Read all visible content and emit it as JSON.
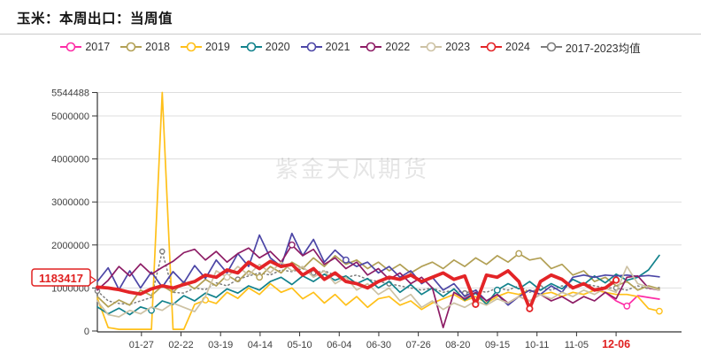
{
  "title": "玉米：本周出口：当周值",
  "watermark": "紫金天风期货",
  "annotation": {
    "label": "1183417",
    "value": 1183417,
    "series": "2024",
    "color": "#e02020",
    "current_x_label": "12-06"
  },
  "chart_data": {
    "type": "line",
    "title": "玉米：本周出口：当周值",
    "xlabel": "",
    "ylabel": "",
    "x_tick_labels": [
      "01-27",
      "02-22",
      "03-19",
      "04-14",
      "05-10",
      "06-04",
      "06-30",
      "07-26",
      "08-20",
      "09-15",
      "10-11",
      "11-05",
      "12-06"
    ],
    "highlighted_x_tick": "12-06",
    "y_ticks": [
      0,
      1000000,
      2000000,
      3000000,
      4000000,
      5000000,
      5544488
    ],
    "ylim": [
      0,
      5544488
    ],
    "grid": "horizontal",
    "legend_position": "top-center",
    "x_unit": "weekly points, early January to late December",
    "series": [
      {
        "name": "2017",
        "color": "#fd2ca6",
        "marker_weeks": [
          49
        ],
        "values": [
          null,
          null,
          null,
          null,
          null,
          null,
          null,
          null,
          null,
          null,
          null,
          null,
          null,
          null,
          null,
          null,
          null,
          null,
          null,
          null,
          null,
          null,
          null,
          null,
          null,
          null,
          null,
          null,
          null,
          null,
          null,
          null,
          null,
          null,
          null,
          null,
          null,
          null,
          null,
          null,
          null,
          null,
          null,
          null,
          null,
          null,
          980000,
          900000,
          700000,
          580000,
          820000,
          780000,
          740000
        ]
      },
      {
        "name": "2018",
        "color": "#b2a055",
        "marker_weeks": [
          15,
          39
        ],
        "values": [
          800000,
          560000,
          720000,
          600000,
          950000,
          820000,
          1050000,
          900000,
          1150000,
          980000,
          1200000,
          1050000,
          1300000,
          1150000,
          1400000,
          1250000,
          1500000,
          1350000,
          1600000,
          1450000,
          1700000,
          1500000,
          1750000,
          1550000,
          1650000,
          1450000,
          1600000,
          1400000,
          1550000,
          1350000,
          1500000,
          1600000,
          1450000,
          1650000,
          1500000,
          1700000,
          1550000,
          1750000,
          1600000,
          1800000,
          1650000,
          1700000,
          1450000,
          1550000,
          1300000,
          1400000,
          1150000,
          1250000,
          1050000,
          1150000,
          950000,
          1050000,
          980000
        ]
      },
      {
        "name": "2019",
        "color": "#ffc019",
        "marker_weeks": [
          10,
          52
        ],
        "values": [
          760000,
          80000,
          40000,
          40000,
          40000,
          40000,
          5544488,
          40000,
          40000,
          620000,
          720000,
          640000,
          900000,
          760000,
          1000000,
          850000,
          1100000,
          900000,
          1000000,
          750000,
          900000,
          650000,
          850000,
          600000,
          800000,
          550000,
          750000,
          800000,
          600000,
          700000,
          500000,
          650000,
          750000,
          850000,
          700000,
          800000,
          650000,
          800000,
          900000,
          850000,
          950000,
          850000,
          900000,
          800000,
          900000,
          850000,
          950000,
          900000,
          850000,
          850000,
          800000,
          520000,
          460000
        ]
      },
      {
        "name": "2020",
        "color": "#12828c",
        "marker_weeks": [
          5,
          37
        ],
        "values": [
          560000,
          400000,
          530000,
          380000,
          560000,
          480000,
          700000,
          620000,
          820000,
          700000,
          880000,
          780000,
          980000,
          880000,
          1050000,
          950000,
          1150000,
          1250000,
          1080000,
          1280000,
          1150000,
          1320000,
          1180000,
          1280000,
          1100000,
          1220000,
          1000000,
          1150000,
          900000,
          1080000,
          850000,
          1000000,
          800000,
          980000,
          720000,
          880000,
          620000,
          950000,
          1100000,
          980000,
          1150000,
          950000,
          1100000,
          980000,
          1200000,
          1080000,
          1280000,
          1120000,
          1320000,
          1180000,
          1250000,
          1420000,
          1760000
        ]
      },
      {
        "name": "2021",
        "color": "#4c46a6",
        "marker_weeks": [
          23
        ],
        "values": [
          1150000,
          1470000,
          960000,
          1400000,
          1000000,
          1370000,
          1020000,
          1380000,
          1120000,
          1520000,
          1220000,
          1650000,
          1350000,
          1800000,
          1500000,
          2230000,
          1700000,
          1500000,
          2270000,
          1750000,
          2130000,
          1600000,
          1880000,
          1650000,
          1500000,
          1600000,
          1350000,
          1500000,
          1250000,
          1400000,
          1100000,
          1250000,
          950000,
          1100000,
          800000,
          950000,
          700000,
          850000,
          600000,
          800000,
          950000,
          850000,
          1050000,
          900000,
          1250000,
          1300000,
          1250000,
          1300000,
          1280000,
          1300000,
          1270000,
          1290000,
          1260000
        ]
      },
      {
        "name": "2022",
        "color": "#8d1c65",
        "marker_weeks": [
          18
        ],
        "values": [
          950000,
          1180000,
          1500000,
          1280000,
          1560000,
          1320000,
          1480000,
          1620000,
          1820000,
          1900000,
          1650000,
          1850000,
          1600000,
          1800000,
          1930000,
          1700000,
          1850000,
          1600000,
          2000000,
          1750000,
          1900000,
          1550000,
          1700000,
          1450000,
          1600000,
          1300000,
          1450000,
          1200000,
          1350000,
          1100000,
          1250000,
          1000000,
          80000,
          900000,
          750000,
          900000,
          700000,
          850000,
          650000,
          800000,
          700000,
          850000,
          700000,
          800000,
          650000,
          800000,
          700000,
          900000,
          750000,
          1250000,
          1280000,
          1000000,
          950000
        ]
      },
      {
        "name": "2023",
        "color": "#cdc2a4",
        "marker_weeks": [
          12
        ],
        "values": [
          700000,
          380000,
          330000,
          480000,
          400000,
          560000,
          480000,
          650000,
          550000,
          450000,
          800000,
          1400000,
          1250000,
          1500000,
          1300000,
          1550000,
          1350000,
          1600000,
          1400000,
          1500000,
          1250000,
          1400000,
          1100000,
          1250000,
          950000,
          1100000,
          850000,
          1000000,
          700000,
          850000,
          550000,
          700000,
          500000,
          650000,
          550000,
          700000,
          600000,
          750000,
          650000,
          800000,
          700000,
          850000,
          750000,
          900000,
          800000,
          950000,
          850000,
          1000000,
          900000,
          1500000,
          1100000,
          1020000,
          950000
        ]
      },
      {
        "name": "2024",
        "color": "#e32427",
        "emphasis": true,
        "marker_weeks": [
          35,
          40,
          48
        ],
        "values": [
          1020000,
          1000000,
          960000,
          900000,
          860000,
          980000,
          1050000,
          1000000,
          1080000,
          1150000,
          1300000,
          1250000,
          1420000,
          1350000,
          1600000,
          1450000,
          1620000,
          1500000,
          1550000,
          1300000,
          1450000,
          1200000,
          1350000,
          1150000,
          1100000,
          1000000,
          1150000,
          1250000,
          1200000,
          1300000,
          1150000,
          1250000,
          1350000,
          1200000,
          1280000,
          620000,
          1300000,
          1250000,
          1400000,
          1150000,
          520000,
          1150000,
          1300000,
          1200000,
          1000000,
          1100000,
          950000,
          1000000,
          1183417,
          null,
          null,
          null,
          null
        ]
      },
      {
        "name": "2017-2023均值",
        "color": "#7d7d7d",
        "style": "dashed",
        "marker_weeks": [
          0,
          6,
          13,
          20,
          27,
          34,
          41,
          48
        ],
        "values": [
          930000,
          700000,
          640000,
          620000,
          700000,
          780000,
          1850000,
          900000,
          880000,
          1000000,
          960000,
          1120000,
          1050000,
          1200000,
          1280000,
          1350000,
          1300000,
          1420000,
          1380000,
          1450000,
          1350000,
          1400000,
          1300000,
          1250000,
          1300000,
          1200000,
          1150000,
          1100000,
          1050000,
          1000000,
          950000,
          1000000,
          900000,
          950000,
          880000,
          950000,
          900000,
          1000000,
          950000,
          1050000,
          900000,
          1000000,
          950000,
          1050000,
          1000000,
          1100000,
          1050000,
          1000000,
          1000000,
          950000,
          1050000,
          980000,
          1010000
        ]
      }
    ]
  }
}
